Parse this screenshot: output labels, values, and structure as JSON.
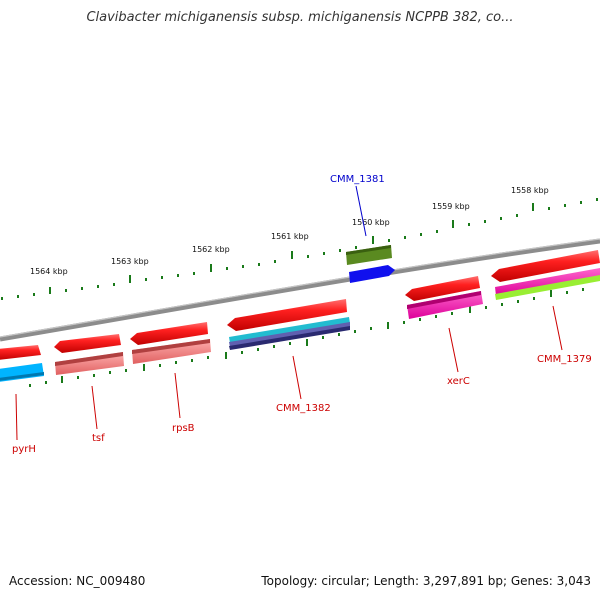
{
  "title": "Clavibacter michiganensis subsp. michiganensis NCPPB 382, co...",
  "footer": {
    "accession": "Accession: NC_009480",
    "summary": "Topology: circular; Length: 3,297,891 bp; Genes: 3,043"
  },
  "scale": {
    "ticks": [
      "1564 kbp",
      "1563 kbp",
      "1562 kbp",
      "1561 kbp",
      "1560 kbp",
      "1559 kbp",
      "1558 kbp"
    ],
    "tick_color": "#1a7a1a"
  },
  "backbone_color": "#8c8c8c",
  "genes": [
    {
      "name": "pyrH",
      "strand": "minus",
      "color": "#d40000"
    },
    {
      "name": "tsf",
      "strand": "minus",
      "color": "#d40000"
    },
    {
      "name": "rpsB",
      "strand": "minus",
      "color": "#d40000"
    },
    {
      "name": "CMM_1382",
      "strand": "minus",
      "color": "#d40000"
    },
    {
      "name": "CMM_1381",
      "strand": "plus",
      "color": "#0000cc"
    },
    {
      "name": "xerC",
      "strand": "minus",
      "color": "#d40000"
    },
    {
      "name": "CMM_1379",
      "strand": "minus",
      "color": "#d40000"
    }
  ]
}
